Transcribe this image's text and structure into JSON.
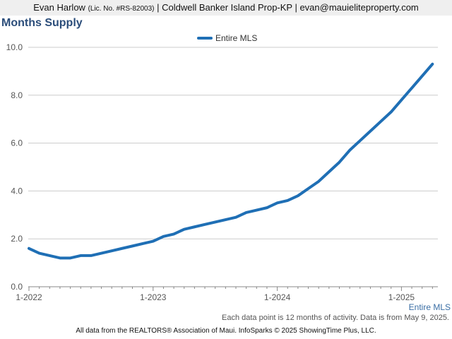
{
  "header": {
    "agent_name": "Evan Harlow",
    "license": "(Lic. No. #RS-82003)",
    "company_email": "| Coldwell Banker Island Prop-KP | evan@mauieliteproperty.com"
  },
  "note": "Each data point is 12 months of activity. Data is from May 9, 2025.",
  "footer": "All data from the REALTORS® Association of Maui. InfoSparks © 2025 ShowingTime Plus, LLC.",
  "colors": {
    "series": "#1f6fb5",
    "grid": "#cccccc",
    "title": "#2b4d7a"
  },
  "chart_data": {
    "type": "line",
    "title": "Months Supply",
    "xlabel": "",
    "ylabel": "",
    "ylim": [
      0,
      10
    ],
    "yticks": [
      "0.0",
      "2.0",
      "4.0",
      "6.0",
      "8.0",
      "10.0"
    ],
    "xticks": [
      "1-2022",
      "1-2023",
      "1-2024",
      "1-2025"
    ],
    "grid": true,
    "legend": "top-center",
    "end_label": "Entire MLS",
    "series": [
      {
        "name": "Entire MLS",
        "x": [
          "2022-01",
          "2022-02",
          "2022-03",
          "2022-04",
          "2022-05",
          "2022-06",
          "2022-07",
          "2022-08",
          "2022-09",
          "2022-10",
          "2022-11",
          "2022-12",
          "2023-01",
          "2023-02",
          "2023-03",
          "2023-04",
          "2023-05",
          "2023-06",
          "2023-07",
          "2023-08",
          "2023-09",
          "2023-10",
          "2023-11",
          "2023-12",
          "2024-01",
          "2024-02",
          "2024-03",
          "2024-04",
          "2024-05",
          "2024-06",
          "2024-07",
          "2024-08",
          "2024-09",
          "2024-10",
          "2024-11",
          "2024-12",
          "2025-01",
          "2025-02",
          "2025-03",
          "2025-04"
        ],
        "values": [
          1.6,
          1.4,
          1.3,
          1.2,
          1.2,
          1.3,
          1.3,
          1.4,
          1.5,
          1.6,
          1.7,
          1.8,
          1.9,
          2.1,
          2.2,
          2.4,
          2.5,
          2.6,
          2.7,
          2.8,
          2.9,
          3.1,
          3.2,
          3.3,
          3.5,
          3.6,
          3.8,
          4.1,
          4.4,
          4.8,
          5.2,
          5.7,
          6.1,
          6.5,
          6.9,
          7.3,
          7.8,
          8.3,
          8.8,
          9.3
        ]
      }
    ]
  }
}
